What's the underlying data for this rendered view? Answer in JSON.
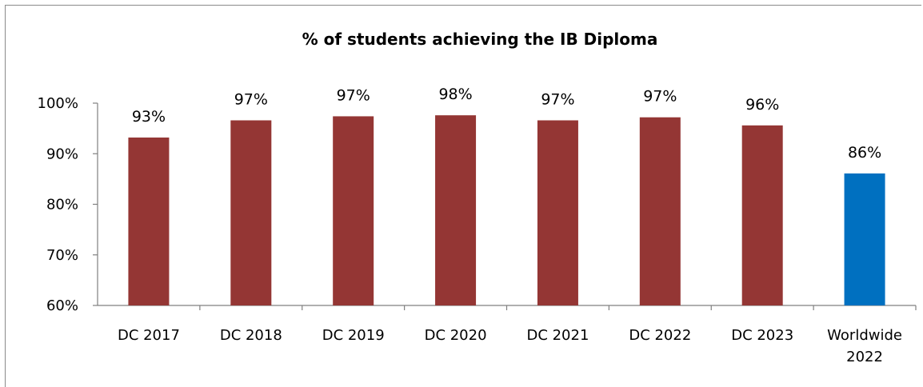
{
  "chart_data": {
    "type": "bar",
    "title": "% of students achieving the IB Diploma",
    "xlabel": "",
    "ylabel": "",
    "ylim": [
      60,
      100
    ],
    "yticks": [
      "60%",
      "70%",
      "80%",
      "90%",
      "100%"
    ],
    "ytick_values": [
      60,
      70,
      80,
      90,
      100
    ],
    "grid": false,
    "categories": [
      [
        "DC 2017"
      ],
      [
        "DC 2018"
      ],
      [
        "DC 2019"
      ],
      [
        "DC 2020"
      ],
      [
        "DC 2021"
      ],
      [
        "DC 2022"
      ],
      [
        "DC 2023"
      ],
      [
        "Worldwide",
        "2022"
      ]
    ],
    "values": [
      93.2,
      96.6,
      97.4,
      97.6,
      96.6,
      97.2,
      95.6,
      86.1
    ],
    "data_labels": [
      "93%",
      "97%",
      "97%",
      "98%",
      "97%",
      "97%",
      "96%",
      "86%"
    ],
    "bar_colors": [
      "#943634",
      "#943634",
      "#943634",
      "#943634",
      "#943634",
      "#943634",
      "#943634",
      "#0070c0"
    ]
  }
}
